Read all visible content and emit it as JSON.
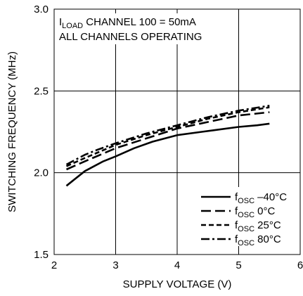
{
  "chart_data": {
    "type": "line",
    "title": "",
    "xlabel": "SUPPLY VOLTAGE (V)",
    "ylabel": "SWITCHING FREQUENCY (MHz)",
    "xlim": [
      2,
      6
    ],
    "ylim": [
      1.5,
      3.0
    ],
    "xticks": [
      "2",
      "3",
      "4",
      "5",
      "6"
    ],
    "yticks": [
      "1.5",
      "2.0",
      "2.5",
      "3.0"
    ],
    "grid": true,
    "legend_position": "bottom-right",
    "annotation": {
      "line1_prefix": "I",
      "line1_sub": "LOAD",
      "line1_rest": " CHANNEL 100 = 50mA",
      "line2": "ALL CHANNELS OPERATING"
    },
    "series": [
      {
        "name_main": "f",
        "name_sub": "OSC",
        "name_rest": " –40°C",
        "style": "solid",
        "x": [
          2.2,
          2.3,
          2.4,
          2.5,
          2.6,
          2.8,
          3.0,
          3.3,
          3.6,
          4.0,
          4.4,
          4.6,
          5.0,
          5.3,
          5.5
        ],
        "y": [
          1.92,
          1.95,
          1.98,
          2.01,
          2.03,
          2.07,
          2.1,
          2.15,
          2.19,
          2.23,
          2.25,
          2.26,
          2.28,
          2.29,
          2.3
        ]
      },
      {
        "name_main": "f",
        "name_sub": "OSC",
        "name_rest": " 0°C",
        "style": "long-dash",
        "x": [
          2.2,
          2.5,
          3.0,
          3.5,
          4.0,
          4.5,
          5.0,
          5.5
        ],
        "y": [
          2.02,
          2.07,
          2.15,
          2.21,
          2.27,
          2.31,
          2.35,
          2.37
        ]
      },
      {
        "name_main": "f",
        "name_sub": "OSC",
        "name_rest": " 25°C",
        "style": "short-dash",
        "x": [
          2.2,
          2.5,
          3.0,
          3.5,
          4.0,
          4.5,
          5.0,
          5.5
        ],
        "y": [
          2.04,
          2.09,
          2.17,
          2.23,
          2.28,
          2.33,
          2.37,
          2.4
        ]
      },
      {
        "name_main": "f",
        "name_sub": "OSC",
        "name_rest": " 80°C",
        "style": "dash-dot",
        "x": [
          2.2,
          2.5,
          2.7,
          3.0,
          3.5,
          4.0,
          4.5,
          5.0,
          5.5
        ],
        "y": [
          2.05,
          2.11,
          2.14,
          2.18,
          2.24,
          2.29,
          2.34,
          2.38,
          2.41
        ]
      }
    ]
  }
}
